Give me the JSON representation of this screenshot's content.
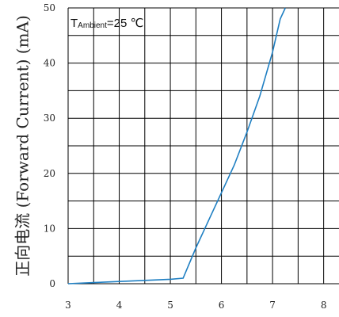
{
  "chart_data": {
    "type": "line",
    "title": "",
    "xlabel": "",
    "ylabel": "正向电流 (Forward Current) (mA)",
    "xlim": [
      3,
      8.3
    ],
    "ylim": [
      0,
      50
    ],
    "grid": true,
    "x_ticks": [
      {
        "value": 3,
        "label": "3"
      },
      {
        "value": 4,
        "label": "4"
      },
      {
        "value": 5,
        "label": "5"
      },
      {
        "value": 6,
        "label": "6"
      },
      {
        "value": 7,
        "label": "7"
      },
      {
        "value": 8,
        "label": "8"
      }
    ],
    "y_ticks": [
      {
        "value": 0,
        "label": "0"
      },
      {
        "value": 10,
        "label": "10"
      },
      {
        "value": 20,
        "label": "20"
      },
      {
        "value": 30,
        "label": "30"
      },
      {
        "value": 40,
        "label": "40"
      },
      {
        "value": 50,
        "label": "50"
      }
    ],
    "annotations": {
      "label_main": "T",
      "label_sub": "Ambient",
      "label_value": "=25 ℃"
    },
    "series": [
      {
        "color": "#1f7fc2",
        "x": [
          3.0,
          3.5,
          4.0,
          4.5,
          5.0,
          5.25,
          5.5,
          5.75,
          6.0,
          6.25,
          6.5,
          6.75,
          7.0,
          7.15,
          7.25
        ],
        "y": [
          0.0,
          0.2,
          0.4,
          0.6,
          0.8,
          1.0,
          6.5,
          11.5,
          16.5,
          21.5,
          27.5,
          34.0,
          42.0,
          48.0,
          50.0
        ]
      }
    ]
  }
}
